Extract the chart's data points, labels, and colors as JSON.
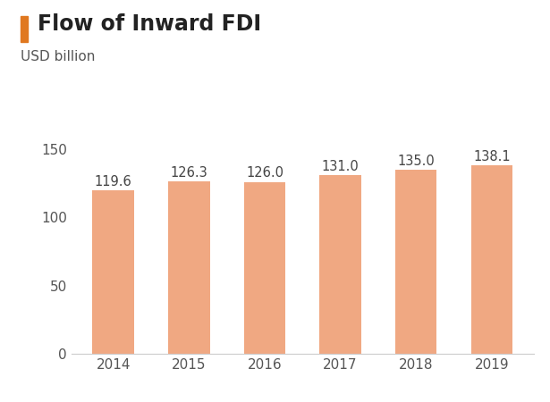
{
  "title": "Flow of Inward FDI",
  "ylabel": "USD billion",
  "categories": [
    "2014",
    "2015",
    "2016",
    "2017",
    "2018",
    "2019"
  ],
  "values": [
    119.6,
    126.3,
    126.0,
    131.0,
    135.0,
    138.1
  ],
  "bar_color": "#F0A882",
  "title_fontsize": 17,
  "label_fontsize": 11,
  "tick_fontsize": 11,
  "annotation_fontsize": 10.5,
  "ylim": [
    0,
    165
  ],
  "yticks": [
    0,
    50,
    100,
    150
  ],
  "title_color": "#222222",
  "accent_color": "#E07820",
  "ylabel_color": "#555555",
  "tick_color": "#555555",
  "background_color": "#ffffff",
  "bar_width": 0.55,
  "annotation_color": "#444444"
}
